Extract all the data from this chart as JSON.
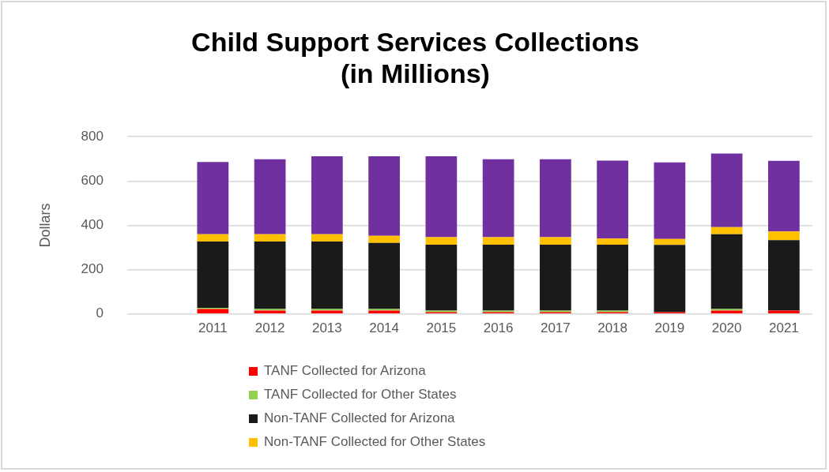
{
  "chart_data": {
    "type": "bar",
    "title": "Child Support Services Collections\n(in Millions)",
    "ylabel": "Dollars",
    "stacked": true,
    "categories": [
      null,
      "2011",
      "2012",
      "2013",
      "2014",
      "2015",
      "2016",
      "2017",
      "2018",
      "2019",
      "2020",
      "2021"
    ],
    "series": [
      {
        "name": "TANF Collected for Arizona",
        "color": "#ff0000",
        "values": [
          null,
          22,
          15,
          15,
          15,
          8,
          8,
          8,
          8,
          8,
          15,
          15
        ]
      },
      {
        "name": "TANF Collected for Other States",
        "color": "#92d050",
        "values": [
          null,
          6,
          7,
          7,
          7,
          7,
          7,
          7,
          7,
          null,
          7,
          null
        ]
      },
      {
        "name": "Non-TANF Collected for Arizona",
        "color": "#1a1a1a",
        "values": [
          null,
          299,
          305,
          305,
          299,
          298,
          298,
          298,
          298,
          304,
          338,
          318
        ]
      },
      {
        "name": "Non-TANF Collected for Other States",
        "color": "#ffc000",
        "values": [
          null,
          33,
          33,
          33,
          32,
          34,
          34,
          34,
          27,
          27,
          32,
          39
        ]
      },
      {
        "color": "#7030a0",
        "values": [
          null,
          326,
          338,
          352,
          359,
          365,
          351,
          351,
          352,
          345,
          332,
          319
        ]
      }
    ],
    "ylim": [
      0,
      800
    ],
    "yticks": [
      0,
      200,
      400,
      600,
      800
    ],
    "grid": "y",
    "legend": "bottom"
  }
}
